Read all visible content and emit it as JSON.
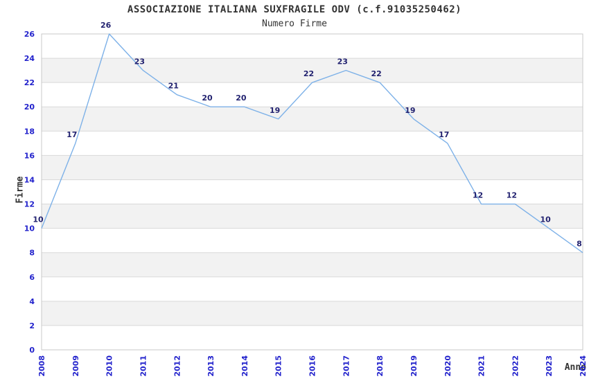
{
  "page": {
    "background": "#ffffff"
  },
  "chart_data": {
    "type": "line",
    "title": "ASSOCIAZIONE ITALIANA SUXFRAGILE ODV (c.f.91035250462)",
    "subtitle": "Numero Firme",
    "xlabel": "Anno",
    "ylabel": "Firme",
    "x": [
      "2008",
      "2009",
      "2010",
      "2011",
      "2012",
      "2013",
      "2014",
      "2015",
      "2016",
      "2017",
      "2018",
      "2019",
      "2020",
      "2021",
      "2022",
      "2023",
      "2024"
    ],
    "values": [
      10,
      17,
      26,
      23,
      21,
      20,
      20,
      19,
      22,
      23,
      22,
      19,
      17,
      12,
      12,
      10,
      8
    ],
    "ylim": [
      0,
      26
    ],
    "ytick_step": 2,
    "grid": "horizontal",
    "bands": "alternating gray between gridline pairs 2-4, 6-8, 10-12, 14-16, 18-20, 22-24",
    "legend": "none",
    "colors": {
      "line": "#7db1e8",
      "tick_labels": "#2222cc",
      "point_labels": "#222270",
      "grid_line": "#d9d9d9",
      "frame": "#c9c9c9",
      "band": "#f2f2f2",
      "title_text": "#333333"
    }
  }
}
